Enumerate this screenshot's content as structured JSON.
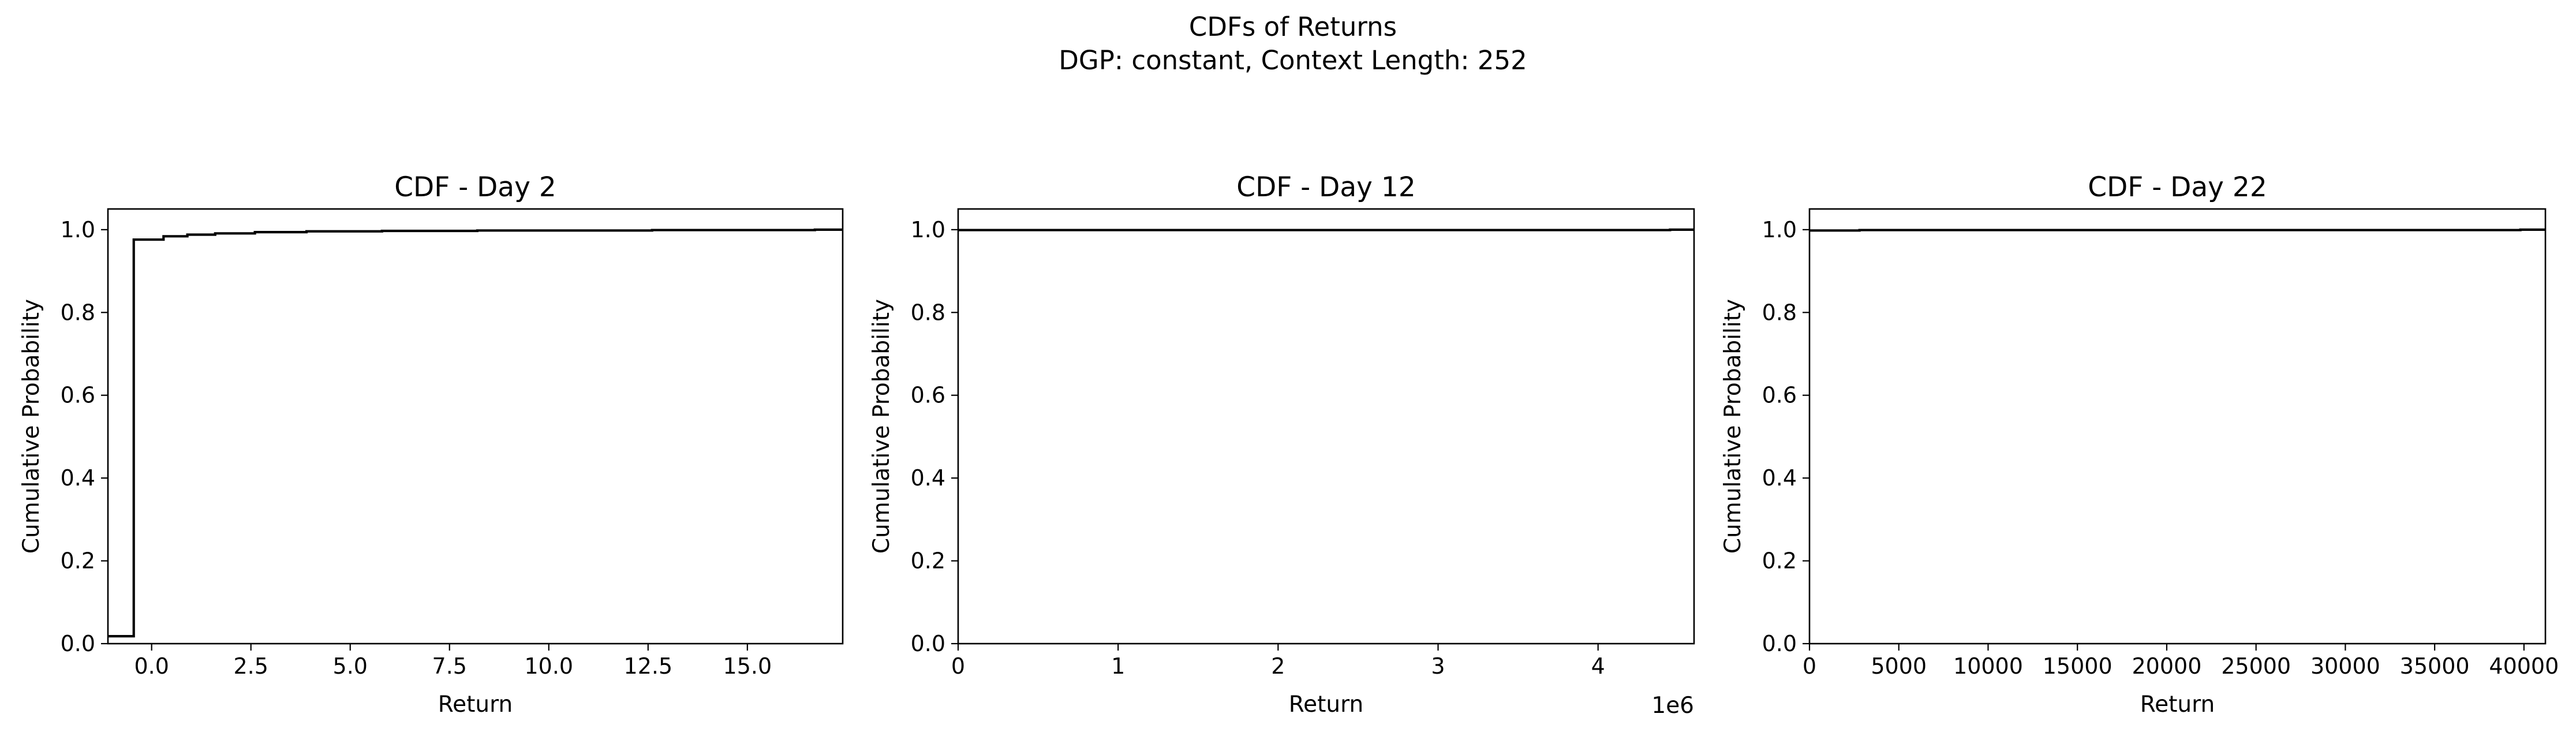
{
  "figure": {
    "title_line1": "CDFs of Returns",
    "title_line2": "DGP: constant, Context Length: 252"
  },
  "chart_data": [
    {
      "type": "line",
      "title": "CDF - Day 2",
      "xlabel": "Return",
      "ylabel": "Cumulative Probability",
      "xlim": [
        -1.1,
        17.4
      ],
      "ylim": [
        0,
        1.05
      ],
      "grid": false,
      "x_ticks": [
        0,
        2.5,
        5,
        7.5,
        10,
        12.5,
        15
      ],
      "x_tick_labels": [
        "0.0",
        "2.5",
        "5.0",
        "7.5",
        "10.0",
        "12.5",
        "15.0"
      ],
      "y_ticks": [
        0,
        0.2,
        0.4,
        0.6,
        0.8,
        1.0
      ],
      "y_tick_labels": [
        "0.0",
        "0.2",
        "0.4",
        "0.6",
        "0.8",
        "1.0"
      ],
      "offset_text": "",
      "series": [
        {
          "step": "post",
          "color": "#000000",
          "x": [
            -1.1,
            -0.45,
            0.3,
            0.9,
            1.6,
            2.6,
            3.9,
            5.8,
            8.2,
            12.6,
            16.7,
            17.4
          ],
          "y": [
            0.018,
            0.976,
            0.984,
            0.988,
            0.991,
            0.994,
            0.996,
            0.997,
            0.998,
            0.999,
            1.0,
            1.0
          ]
        }
      ]
    },
    {
      "type": "line",
      "title": "CDF - Day 12",
      "xlabel": "Return",
      "ylabel": "Cumulative Probability",
      "xlim": [
        0,
        4600000
      ],
      "ylim": [
        0,
        1.05
      ],
      "grid": false,
      "x_ticks": [
        0,
        1000000,
        2000000,
        3000000,
        4000000
      ],
      "x_tick_labels": [
        "0",
        "1",
        "2",
        "3",
        "4"
      ],
      "y_ticks": [
        0,
        0.2,
        0.4,
        0.6,
        0.8,
        1.0
      ],
      "y_tick_labels": [
        "0.0",
        "0.2",
        "0.4",
        "0.6",
        "0.8",
        "1.0"
      ],
      "offset_text": "1e6",
      "series": [
        {
          "step": "post",
          "color": "#000000",
          "x": [
            0,
            4450000,
            4600000
          ],
          "y": [
            0.999,
            1.0,
            1.0
          ]
        }
      ]
    },
    {
      "type": "line",
      "title": "CDF - Day 22",
      "xlabel": "Return",
      "ylabel": "Cumulative Probability",
      "xlim": [
        0,
        41200
      ],
      "ylim": [
        0,
        1.05
      ],
      "grid": false,
      "x_ticks": [
        0,
        5000,
        10000,
        15000,
        20000,
        25000,
        30000,
        35000,
        40000
      ],
      "x_tick_labels": [
        "0",
        "5000",
        "10000",
        "15000",
        "20000",
        "25000",
        "30000",
        "35000",
        "40000"
      ],
      "y_ticks": [
        0,
        0.2,
        0.4,
        0.6,
        0.8,
        1.0
      ],
      "y_tick_labels": [
        "0.0",
        "0.2",
        "0.4",
        "0.6",
        "0.8",
        "1.0"
      ],
      "offset_text": "",
      "series": [
        {
          "step": "post",
          "color": "#000000",
          "x": [
            0,
            2800,
            39800,
            41200
          ],
          "y": [
            0.998,
            0.999,
            1.0,
            1.0
          ]
        }
      ]
    }
  ]
}
